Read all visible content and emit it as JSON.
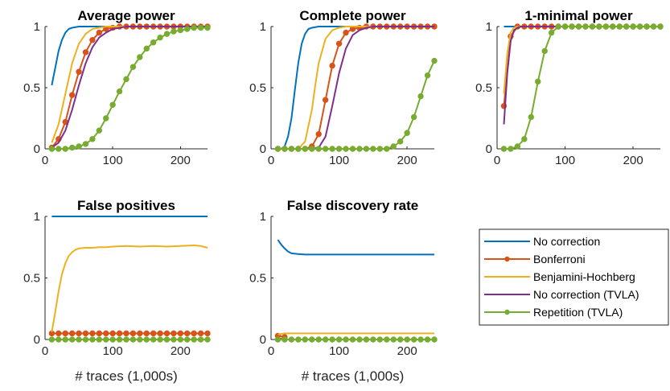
{
  "chart_data": [
    {
      "type": "line",
      "title": "Average power",
      "xlabel": "",
      "ylabel": "",
      "xlim": [
        0,
        240
      ],
      "ylim": [
        0,
        1
      ],
      "xticks": [
        "0",
        "100",
        "200"
      ],
      "yticks": [
        "0",
        "0.5",
        "1"
      ],
      "series": [
        {
          "name": "No correction",
          "color": "#0072BD",
          "markers": false,
          "x": [
            10,
            15,
            20,
            25,
            30,
            35,
            40,
            50,
            60,
            80,
            100,
            240
          ],
          "y": [
            0.52,
            0.66,
            0.8,
            0.89,
            0.95,
            0.98,
            0.99,
            1.0,
            1.0,
            1.0,
            1.0,
            1.0
          ]
        },
        {
          "name": "Bonferroni",
          "color": "#D95319",
          "markers": true,
          "x": [
            10,
            20,
            30,
            40,
            50,
            60,
            70,
            80,
            90,
            100,
            110,
            120,
            130,
            140,
            150,
            160,
            170,
            180,
            190,
            200,
            210,
            220,
            230,
            240
          ],
          "y": [
            0.01,
            0.08,
            0.22,
            0.44,
            0.63,
            0.79,
            0.89,
            0.95,
            0.98,
            0.99,
            1.0,
            1.0,
            1.0,
            1.0,
            1.0,
            1.0,
            1.0,
            1.0,
            1.0,
            1.0,
            1.0,
            1.0,
            1.0,
            1.0
          ]
        },
        {
          "name": "Benjamini-Hochberg",
          "color": "#EDB120",
          "markers": false,
          "x": [
            10,
            20,
            30,
            40,
            50,
            60,
            70,
            80,
            90,
            100,
            120,
            240
          ],
          "y": [
            0.05,
            0.2,
            0.45,
            0.7,
            0.86,
            0.94,
            0.98,
            0.99,
            1.0,
            1.0,
            1.0,
            1.0
          ]
        },
        {
          "name": "No correction (TVLA)",
          "color": "#7E2F8E",
          "markers": false,
          "x": [
            10,
            20,
            30,
            40,
            50,
            60,
            70,
            80,
            90,
            100,
            110,
            120,
            130,
            240
          ],
          "y": [
            0.01,
            0.05,
            0.15,
            0.32,
            0.52,
            0.7,
            0.83,
            0.91,
            0.95,
            0.98,
            0.99,
            1.0,
            1.0,
            1.0
          ]
        },
        {
          "name": "Repetition (TVLA)",
          "color": "#77AC30",
          "markers": true,
          "x": [
            10,
            20,
            30,
            40,
            50,
            60,
            70,
            80,
            90,
            100,
            110,
            120,
            130,
            140,
            150,
            160,
            170,
            180,
            190,
            200,
            210,
            220,
            230,
            240
          ],
          "y": [
            0.0,
            0.0,
            0.0,
            0.01,
            0.02,
            0.04,
            0.08,
            0.15,
            0.25,
            0.36,
            0.47,
            0.57,
            0.67,
            0.75,
            0.82,
            0.87,
            0.91,
            0.94,
            0.96,
            0.97,
            0.98,
            0.99,
            0.99,
            0.99
          ]
        }
      ]
    },
    {
      "type": "line",
      "title": "Complete power",
      "xlabel": "",
      "ylabel": "",
      "xlim": [
        0,
        240
      ],
      "ylim": [
        0,
        1
      ],
      "xticks": [
        "0",
        "100",
        "200"
      ],
      "yticks": [
        "0",
        "0.5",
        "1"
      ],
      "series": [
        {
          "name": "No correction",
          "color": "#0072BD",
          "markers": false,
          "x": [
            10,
            15,
            20,
            25,
            30,
            35,
            40,
            45,
            50,
            55,
            60,
            70,
            80,
            240
          ],
          "y": [
            0.0,
            0.0,
            0.02,
            0.1,
            0.25,
            0.48,
            0.7,
            0.86,
            0.94,
            0.98,
            0.99,
            1.0,
            1.0,
            1.0
          ]
        },
        {
          "name": "Bonferroni",
          "color": "#D95319",
          "markers": true,
          "x": [
            10,
            20,
            30,
            40,
            50,
            60,
            70,
            80,
            90,
            100,
            110,
            120,
            130,
            140,
            150,
            160,
            170,
            180,
            190,
            200,
            210,
            220,
            230,
            240
          ],
          "y": [
            0.0,
            0.0,
            0.0,
            0.0,
            0.0,
            0.02,
            0.12,
            0.4,
            0.68,
            0.86,
            0.95,
            0.98,
            0.99,
            1.0,
            1.0,
            1.0,
            1.0,
            1.0,
            1.0,
            1.0,
            1.0,
            1.0,
            1.0,
            1.0
          ]
        },
        {
          "name": "Benjamini-Hochberg",
          "color": "#EDB120",
          "markers": false,
          "x": [
            10,
            20,
            30,
            40,
            50,
            60,
            65,
            70,
            80,
            90,
            100,
            110,
            240
          ],
          "y": [
            0.0,
            0.0,
            0.0,
            0.0,
            0.06,
            0.32,
            0.52,
            0.7,
            0.9,
            0.97,
            0.99,
            1.0,
            1.0
          ]
        },
        {
          "name": "No correction (TVLA)",
          "color": "#7E2F8E",
          "markers": false,
          "x": [
            10,
            40,
            60,
            70,
            80,
            90,
            100,
            110,
            120,
            130,
            140,
            150,
            240
          ],
          "y": [
            0.0,
            0.0,
            0.0,
            0.01,
            0.1,
            0.35,
            0.62,
            0.82,
            0.93,
            0.97,
            0.99,
            1.0,
            1.0
          ]
        },
        {
          "name": "Repetition (TVLA)",
          "color": "#77AC30",
          "markers": true,
          "x": [
            10,
            20,
            30,
            40,
            50,
            60,
            70,
            80,
            90,
            100,
            110,
            120,
            130,
            140,
            150,
            160,
            170,
            180,
            190,
            200,
            210,
            220,
            230,
            240
          ],
          "y": [
            0.0,
            0.0,
            0.0,
            0.0,
            0.0,
            0.0,
            0.0,
            0.0,
            0.0,
            0.0,
            0.0,
            0.0,
            0.0,
            0.0,
            0.0,
            0.0,
            0.0,
            0.02,
            0.06,
            0.13,
            0.26,
            0.43,
            0.6,
            0.72
          ]
        }
      ]
    },
    {
      "type": "line",
      "title": "1-minimal power",
      "xlabel": "",
      "ylabel": "",
      "xlim": [
        0,
        240
      ],
      "ylim": [
        0,
        1
      ],
      "xticks": [
        "0",
        "100",
        "200"
      ],
      "yticks": [
        "0",
        "0.5",
        "1"
      ],
      "series": [
        {
          "name": "No correction",
          "color": "#0072BD",
          "markers": false,
          "x": [
            10,
            20,
            240
          ],
          "y": [
            1.0,
            1.0,
            1.0
          ]
        },
        {
          "name": "Bonferroni",
          "color": "#D95319",
          "markers": true,
          "x": [
            10,
            20,
            30,
            40,
            50,
            60,
            70,
            80,
            90,
            100,
            110,
            120,
            130,
            140,
            150,
            160,
            170,
            180,
            190,
            200,
            210,
            220,
            230,
            240
          ],
          "y": [
            0.35,
            0.92,
            1.0,
            1.0,
            1.0,
            1.0,
            1.0,
            1.0,
            1.0,
            1.0,
            1.0,
            1.0,
            1.0,
            1.0,
            1.0,
            1.0,
            1.0,
            1.0,
            1.0,
            1.0,
            1.0,
            1.0,
            1.0,
            1.0
          ]
        },
        {
          "name": "Benjamini-Hochberg",
          "color": "#EDB120",
          "markers": false,
          "x": [
            10,
            15,
            20,
            25,
            30,
            240
          ],
          "y": [
            0.45,
            0.78,
            0.95,
            0.99,
            1.0,
            1.0
          ]
        },
        {
          "name": "No correction (TVLA)",
          "color": "#7E2F8E",
          "markers": false,
          "x": [
            10,
            15,
            20,
            25,
            30,
            35,
            240
          ],
          "y": [
            0.2,
            0.62,
            0.88,
            0.97,
            0.99,
            1.0,
            1.0
          ]
        },
        {
          "name": "Repetition (TVLA)",
          "color": "#77AC30",
          "markers": true,
          "x": [
            10,
            20,
            30,
            40,
            50,
            60,
            70,
            80,
            90,
            100,
            110,
            120,
            130,
            140,
            150,
            160,
            170,
            180,
            190,
            200,
            210,
            220,
            230,
            240
          ],
          "y": [
            0.0,
            0.0,
            0.02,
            0.08,
            0.26,
            0.55,
            0.8,
            0.95,
            1.0,
            1.0,
            1.0,
            1.0,
            1.0,
            1.0,
            1.0,
            1.0,
            1.0,
            1.0,
            1.0,
            1.0,
            1.0,
            1.0,
            1.0,
            1.0
          ]
        }
      ]
    },
    {
      "type": "line",
      "title": "False positives",
      "xlabel": "# traces (1,000s)",
      "ylabel": "",
      "xlim": [
        0,
        240
      ],
      "ylim": [
        0,
        1
      ],
      "xticks": [
        "0",
        "100",
        "200"
      ],
      "yticks": [
        "0",
        "0.5",
        "1"
      ],
      "series": [
        {
          "name": "No correction",
          "color": "#0072BD",
          "markers": false,
          "x": [
            10,
            240
          ],
          "y": [
            1.0,
            1.0
          ]
        },
        {
          "name": "Bonferroni",
          "color": "#D95319",
          "markers": true,
          "x": [
            10,
            20,
            30,
            40,
            50,
            60,
            70,
            80,
            90,
            100,
            110,
            120,
            130,
            140,
            150,
            160,
            170,
            180,
            190,
            200,
            210,
            220,
            230,
            240
          ],
          "y": [
            0.05,
            0.05,
            0.05,
            0.05,
            0.05,
            0.05,
            0.05,
            0.05,
            0.05,
            0.05,
            0.05,
            0.05,
            0.05,
            0.05,
            0.05,
            0.05,
            0.05,
            0.05,
            0.05,
            0.05,
            0.05,
            0.05,
            0.05,
            0.05
          ]
        },
        {
          "name": "Benjamini-Hochberg",
          "color": "#EDB120",
          "markers": false,
          "x": [
            10,
            15,
            20,
            25,
            30,
            35,
            40,
            45,
            50,
            60,
            70,
            80,
            90,
            100,
            120,
            140,
            160,
            180,
            200,
            220,
            230,
            240
          ],
          "y": [
            0.06,
            0.22,
            0.39,
            0.53,
            0.62,
            0.68,
            0.71,
            0.73,
            0.74,
            0.745,
            0.745,
            0.75,
            0.75,
            0.755,
            0.76,
            0.755,
            0.76,
            0.755,
            0.76,
            0.765,
            0.76,
            0.745
          ]
        },
        {
          "name": "No correction (TVLA)",
          "color": "#7E2F8E",
          "markers": false,
          "x": [
            10,
            240
          ],
          "y": [
            0.0,
            0.0
          ]
        },
        {
          "name": "Repetition (TVLA)",
          "color": "#77AC30",
          "markers": true,
          "x": [
            10,
            20,
            30,
            40,
            50,
            60,
            70,
            80,
            90,
            100,
            110,
            120,
            130,
            140,
            150,
            160,
            170,
            180,
            190,
            200,
            210,
            220,
            230,
            240
          ],
          "y": [
            0.0,
            0.0,
            0.0,
            0.0,
            0.0,
            0.0,
            0.0,
            0.0,
            0.0,
            0.0,
            0.0,
            0.0,
            0.0,
            0.0,
            0.0,
            0.0,
            0.0,
            0.0,
            0.0,
            0.0,
            0.0,
            0.0,
            0.0,
            0.0
          ]
        }
      ]
    },
    {
      "type": "line",
      "title": "False discovery rate",
      "xlabel": "# traces (1,000s)",
      "ylabel": "",
      "xlim": [
        0,
        240
      ],
      "ylim": [
        0,
        1
      ],
      "xticks": [
        "0",
        "100",
        "200"
      ],
      "yticks": [
        "0",
        "0.5",
        "1"
      ],
      "series": [
        {
          "name": "No correction",
          "color": "#0072BD",
          "markers": false,
          "x": [
            10,
            15,
            20,
            25,
            30,
            40,
            50,
            60,
            80,
            100,
            140,
            180,
            220,
            240
          ],
          "y": [
            0.81,
            0.77,
            0.74,
            0.715,
            0.7,
            0.695,
            0.69,
            0.69,
            0.69,
            0.69,
            0.69,
            0.69,
            0.69,
            0.69
          ]
        },
        {
          "name": "Bonferroni",
          "color": "#D95319",
          "markers": true,
          "x": [
            10,
            20
          ],
          "y": [
            0.03,
            0.02
          ]
        },
        {
          "name": "Benjamini-Hochberg",
          "color": "#EDB120",
          "markers": false,
          "x": [
            10,
            20,
            30,
            40,
            240
          ],
          "y": [
            0.04,
            0.05,
            0.05,
            0.05,
            0.05
          ]
        },
        {
          "name": "No correction (TVLA)",
          "color": "#7E2F8E",
          "markers": false,
          "x": [
            10,
            20,
            30,
            40,
            240
          ],
          "y": [
            0.01,
            0.0,
            0.0,
            0.0,
            0.0
          ]
        },
        {
          "name": "Repetition (TVLA)",
          "color": "#77AC30",
          "markers": true,
          "x": [
            10,
            20,
            30,
            40,
            50,
            60,
            70,
            80,
            90,
            100,
            110,
            120,
            130,
            140,
            150,
            160,
            170,
            180,
            190,
            200,
            210,
            220,
            230,
            240
          ],
          "y": [
            0.0,
            0.0,
            0.0,
            0.0,
            0.0,
            0.0,
            0.0,
            0.0,
            0.0,
            0.0,
            0.0,
            0.0,
            0.0,
            0.0,
            0.0,
            0.0,
            0.0,
            0.0,
            0.0,
            0.0,
            0.0,
            0.0,
            0.0,
            0.0
          ]
        }
      ]
    }
  ],
  "legend": {
    "placement": "lower-right",
    "entries": [
      {
        "label": "No correction",
        "color": "#0072BD",
        "markers": false
      },
      {
        "label": "Bonferroni",
        "color": "#D95319",
        "markers": true
      },
      {
        "label": "Benjamini-Hochberg",
        "color": "#EDB120",
        "markers": false
      },
      {
        "label": "No correction (TVLA)",
        "color": "#7E2F8E",
        "markers": false
      },
      {
        "label": "Repetition (TVLA)",
        "color": "#77AC30",
        "markers": true
      }
    ]
  }
}
